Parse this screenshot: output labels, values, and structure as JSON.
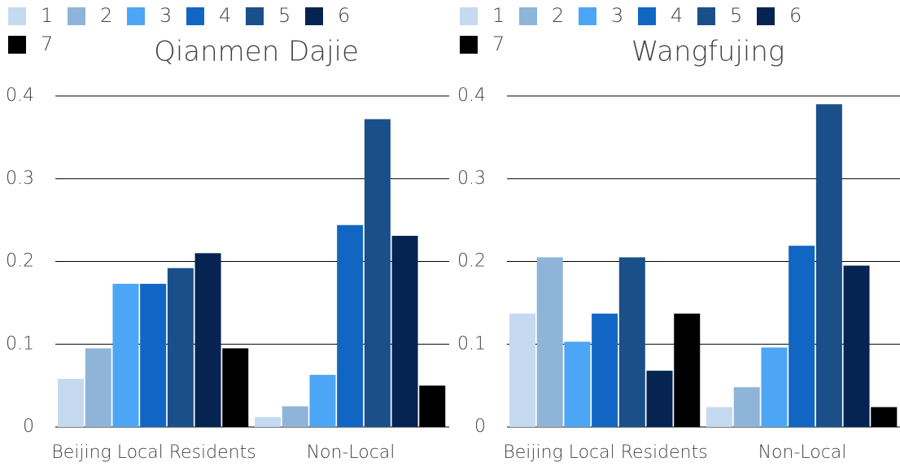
{
  "chart_data": [
    {
      "type": "bar",
      "title": "Qianmen Dajie",
      "categories": [
        "Beijing Local Residents",
        "Non-Local"
      ],
      "series": [
        {
          "name": "1",
          "color": "#c5d9f1",
          "values": [
            0.058,
            0.012
          ]
        },
        {
          "name": "2",
          "color": "#8fb4d9",
          "values": [
            0.095,
            0.025
          ]
        },
        {
          "name": "3",
          "color": "#4da6f5",
          "values": [
            0.173,
            0.063
          ]
        },
        {
          "name": "4",
          "color": "#1166c4",
          "values": [
            0.173,
            0.244
          ]
        },
        {
          "name": "5",
          "color": "#1a4f8a",
          "values": [
            0.192,
            0.372
          ]
        },
        {
          "name": "6",
          "color": "#062452",
          "values": [
            0.21,
            0.231
          ]
        },
        {
          "name": "7",
          "color": "#000000",
          "values": [
            0.095,
            0.05
          ]
        }
      ],
      "ylim": [
        0,
        0.4
      ],
      "yticks": [
        0,
        0.1,
        0.2,
        0.3,
        0.4
      ],
      "grid": true,
      "legend": "top"
    },
    {
      "type": "bar",
      "title": "Wangfujing",
      "categories": [
        "Beijing Local Residents",
        "Non-Local"
      ],
      "series": [
        {
          "name": "1",
          "color": "#c5d9f1",
          "values": [
            0.137,
            0.024
          ]
        },
        {
          "name": "2",
          "color": "#8fb4d9",
          "values": [
            0.205,
            0.048
          ]
        },
        {
          "name": "3",
          "color": "#4da6f5",
          "values": [
            0.103,
            0.096
          ]
        },
        {
          "name": "4",
          "color": "#1166c4",
          "values": [
            0.137,
            0.219
          ]
        },
        {
          "name": "5",
          "color": "#1a4f8a",
          "values": [
            0.205,
            0.39
          ]
        },
        {
          "name": "6",
          "color": "#062452",
          "values": [
            0.068,
            0.195
          ]
        },
        {
          "name": "7",
          "color": "#000000",
          "values": [
            0.137,
            0.024
          ]
        }
      ],
      "ylim": [
        0,
        0.4
      ],
      "yticks": [
        0,
        0.1,
        0.2,
        0.3,
        0.4
      ],
      "grid": true,
      "legend": "top"
    }
  ]
}
